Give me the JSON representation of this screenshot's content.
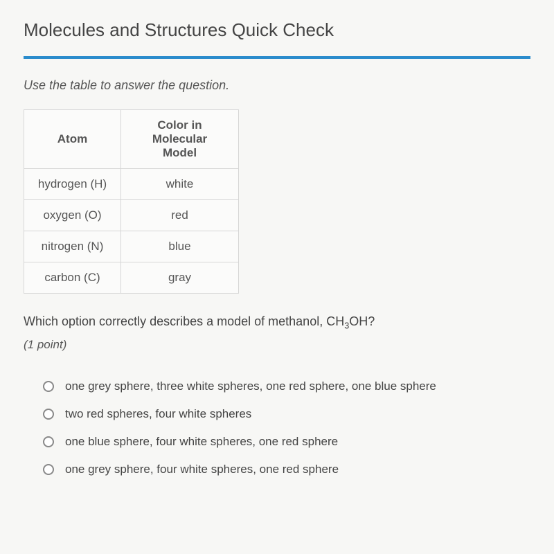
{
  "title": "Molecules and Structures Quick Check",
  "instruction": "Use the table to answer the question.",
  "table": {
    "headers": {
      "atom": "Atom",
      "color": "Color in Molecular Model"
    },
    "rows": [
      {
        "atom": "hydrogen (H)",
        "color": "white"
      },
      {
        "atom": "oxygen (O)",
        "color": "red"
      },
      {
        "atom": "nitrogen (N)",
        "color": "blue"
      },
      {
        "atom": "carbon (C)",
        "color": "gray"
      }
    ]
  },
  "question_prefix": "Which option correctly describes a model of methanol, CH",
  "question_sub": "3",
  "question_suffix": "OH?",
  "points": "(1 point)",
  "options": [
    "one grey sphere, three white spheres, one red sphere, one blue sphere",
    "two red spheres, four white spheres",
    "one blue sphere, four white spheres, one red sphere",
    "one grey sphere, four white spheres, one red sphere"
  ],
  "style": {
    "accent": "#2b8ccc",
    "border": "#d6d6d6",
    "bg": "#f7f7f5",
    "text": "#444"
  }
}
